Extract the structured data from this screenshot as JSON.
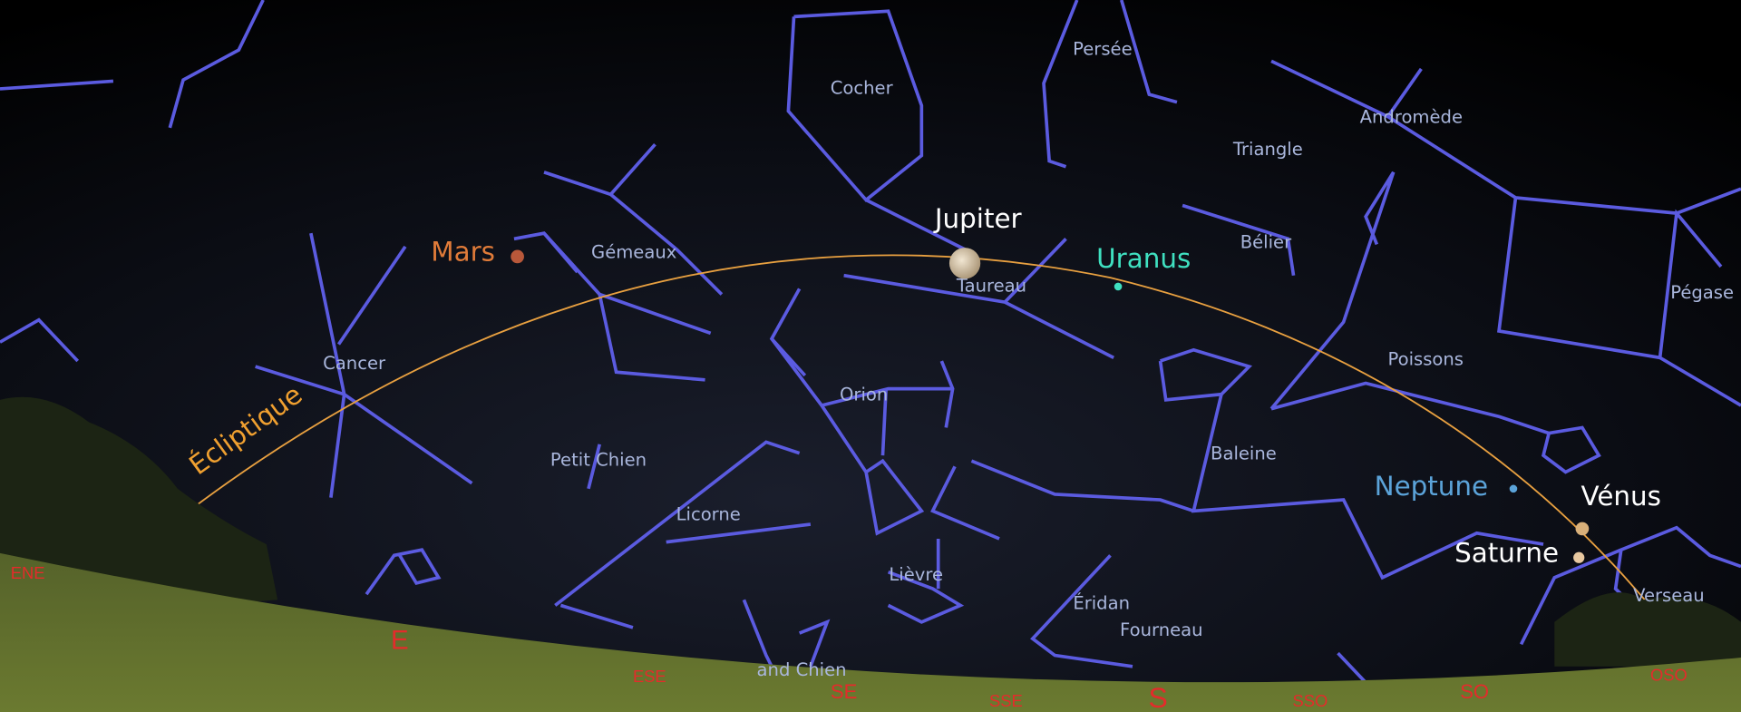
{
  "constellations": [
    "Persée",
    "Cocher",
    "Andromède",
    "Triangle",
    "Bélier",
    "Gémeaux",
    "Taureau",
    "Pégase",
    "Cancer",
    "Poissons",
    "Orion",
    "Baleine",
    "Petit Chien",
    "Licorne",
    "Lièvre",
    "Éridan",
    "Fourneau",
    "Verseau",
    "and Chien"
  ],
  "planets": [
    "Mars",
    "Jupiter",
    "Uranus",
    "Neptune",
    "Vénus",
    "Saturne"
  ],
  "ecliptic": "Écliptique",
  "directions": [
    "ENE",
    "E",
    "ESE",
    "SE",
    "SSE",
    "S",
    "SSO",
    "SO",
    "OSO"
  ]
}
